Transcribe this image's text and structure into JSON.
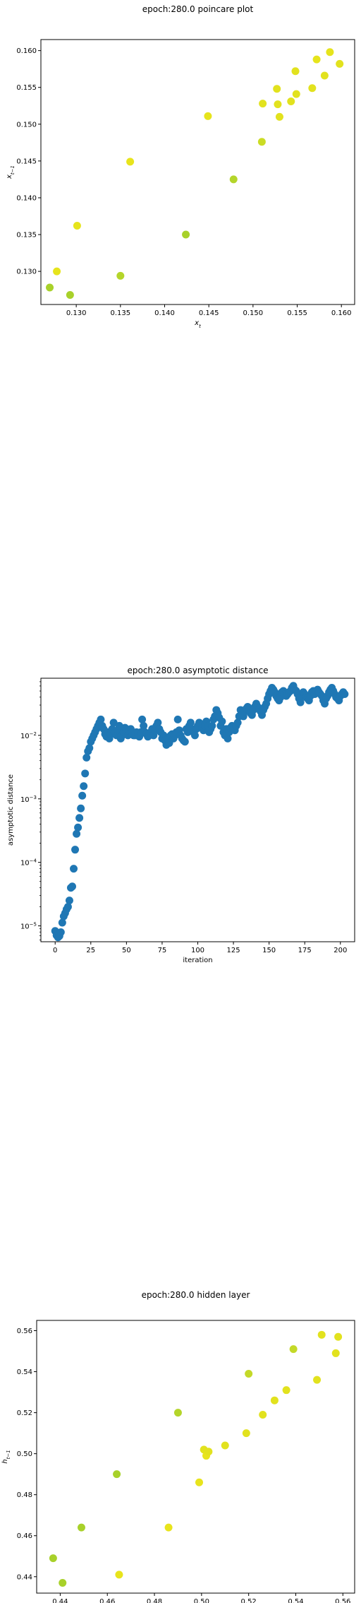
{
  "charts": [
    {
      "title": "epoch:280.0 poincare plot",
      "type": "scatter",
      "xlabel": "x",
      "xlabel_sub": "t",
      "ylabel": "x",
      "ylabel_sub": "t−1",
      "xlim": [
        0.126,
        0.1615
      ],
      "ylim": [
        0.1255,
        0.1615
      ],
      "xticks": [
        "0.130",
        "0.135",
        "0.140",
        "0.145",
        "0.150",
        "0.155",
        "0.160"
      ],
      "yticks": [
        "0.130",
        "0.135",
        "0.140",
        "0.145",
        "0.150",
        "0.155",
        "0.160"
      ],
      "points": [
        [
          0.127,
          0.1278,
          "#a8d12a"
        ],
        [
          0.1278,
          0.13,
          "#e6e41c"
        ],
        [
          0.1293,
          0.1268,
          "#a8d12a"
        ],
        [
          0.1301,
          0.1362,
          "#e6e41c"
        ],
        [
          0.135,
          0.1294,
          "#b4d52a"
        ],
        [
          0.1361,
          0.1449,
          "#e8e41c"
        ],
        [
          0.1424,
          0.135,
          "#a8d12a"
        ],
        [
          0.1449,
          0.1511,
          "#e6e41c"
        ],
        [
          0.1478,
          0.1425,
          "#b4d52a"
        ],
        [
          0.151,
          0.1476,
          "#cbdc24"
        ],
        [
          0.1511,
          0.1528,
          "#e2e21e"
        ],
        [
          0.1527,
          0.1548,
          "#e2e21e"
        ],
        [
          0.1528,
          0.1527,
          "#e2e21e"
        ],
        [
          0.153,
          0.151,
          "#e2e21e"
        ],
        [
          0.1543,
          0.1531,
          "#e2e21e"
        ],
        [
          0.1548,
          0.1572,
          "#e2e21e"
        ],
        [
          0.1549,
          0.1541,
          "#e2e21e"
        ],
        [
          0.1567,
          0.1549,
          "#e2e21e"
        ],
        [
          0.1572,
          0.1588,
          "#e6e41c"
        ],
        [
          0.1581,
          0.1566,
          "#e2e21e"
        ],
        [
          0.1587,
          0.1598,
          "#e6e41c"
        ],
        [
          0.1598,
          0.1582,
          "#e2e21e"
        ]
      ]
    },
    {
      "title": "epoch:280.0 asymptotic distance",
      "type": "scatter",
      "xlabel": "iteration",
      "ylabel": "asymptotic distance",
      "xlim": [
        -10,
        210
      ],
      "ylim_log": [
        -5.25,
        -1.1
      ],
      "xticks": [
        0,
        25,
        50,
        75,
        100,
        125,
        150,
        175,
        200
      ],
      "yticks": [
        {
          "exp": -5,
          "base": "10",
          "sup": "−5"
        },
        {
          "exp": -4,
          "base": "10",
          "sup": "−4"
        },
        {
          "exp": -3,
          "base": "10",
          "sup": "−3"
        },
        {
          "exp": -2,
          "base": "10",
          "sup": "−2"
        }
      ],
      "color": "#1f77b4",
      "series_logy": [
        -5.08,
        -5.15,
        -5.18,
        -5.16,
        -5.1,
        -4.95,
        -4.85,
        -4.8,
        -4.74,
        -4.7,
        -4.6,
        -4.4,
        -4.38,
        -4.1,
        -3.8,
        -3.55,
        -3.45,
        -3.3,
        -3.15,
        -2.95,
        -2.8,
        -2.6,
        -2.35,
        -2.25,
        -2.2,
        -2.1,
        -2.05,
        -2.0,
        -1.95,
        -1.9,
        -1.85,
        -1.8,
        -1.75,
        -1.85,
        -1.9,
        -1.98,
        -2.02,
        -1.95,
        -2.05,
        -1.98,
        -1.9,
        -1.8,
        -1.95,
        -2.0,
        -1.92,
        -1.85,
        -2.05,
        -2.0,
        -1.95,
        -1.88,
        -1.92,
        -2.0,
        -1.93,
        -1.9,
        -1.95,
        -2.0,
        -2.0,
        -1.95,
        -1.98,
        -2.02,
        -1.95,
        -1.75,
        -1.85,
        -1.95,
        -1.98,
        -2.02,
        -2.0,
        -1.95,
        -1.9,
        -2.0,
        -1.92,
        -1.85,
        -1.8,
        -1.9,
        -1.95,
        -2.05,
        -2.0,
        -2.08,
        -2.15,
        -2.05,
        -2.12,
        -2.0,
        -1.98,
        -2.05,
        -2.0,
        -1.95,
        -1.75,
        -1.92,
        -2.0,
        -2.05,
        -2.08,
        -2.1,
        -1.9,
        -1.95,
        -1.85,
        -1.8,
        -1.9,
        -1.95,
        -2.0,
        -1.9,
        -1.85,
        -1.8,
        -1.82,
        -1.88,
        -1.92,
        -1.85,
        -1.78,
        -1.85,
        -1.95,
        -1.9,
        -1.85,
        -1.75,
        -1.7,
        -1.6,
        -1.65,
        -1.72,
        -1.85,
        -1.78,
        -1.95,
        -2.0,
        -1.9,
        -2.05,
        -1.95,
        -1.88,
        -1.85,
        -1.9,
        -1.92,
        -1.85,
        -1.8,
        -1.7,
        -1.6,
        -1.65,
        -1.7,
        -1.62,
        -1.58,
        -1.55,
        -1.6,
        -1.65,
        -1.68,
        -1.6,
        -1.55,
        -1.5,
        -1.55,
        -1.58,
        -1.62,
        -1.68,
        -1.6,
        -1.55,
        -1.5,
        -1.42,
        -1.35,
        -1.3,
        -1.25,
        -1.28,
        -1.32,
        -1.38,
        -1.42,
        -1.45,
        -1.4,
        -1.32,
        -1.3,
        -1.35,
        -1.38,
        -1.35,
        -1.32,
        -1.3,
        -1.25,
        -1.22,
        -1.28,
        -1.3,
        -1.35,
        -1.42,
        -1.48,
        -1.38,
        -1.32,
        -1.35,
        -1.4,
        -1.42,
        -1.45,
        -1.38,
        -1.32,
        -1.3,
        -1.35,
        -1.3,
        -1.28,
        -1.32,
        -1.35,
        -1.38,
        -1.45,
        -1.5,
        -1.42,
        -1.38,
        -1.32,
        -1.28,
        -1.25,
        -1.3,
        -1.35,
        -1.4,
        -1.42,
        -1.45,
        -1.38,
        -1.35,
        -1.32,
        -1.35
      ]
    },
    {
      "title": "epoch:280.0 hidden layer",
      "type": "scatter",
      "xlabel": "h",
      "xlabel_sub": "t",
      "ylabel": "h",
      "ylabel_sub": "t−1",
      "xlim": [
        0.43,
        0.565
      ],
      "ylim": [
        0.432,
        0.565
      ],
      "xticks": [
        "0.44",
        "0.46",
        "0.48",
        "0.50",
        "0.52",
        "0.54",
        "0.56"
      ],
      "yticks": [
        "0.44",
        "0.46",
        "0.48",
        "0.50",
        "0.52",
        "0.54",
        "0.56"
      ],
      "points": [
        [
          0.437,
          0.449,
          "#a8d12a"
        ],
        [
          0.441,
          0.437,
          "#a8d12a"
        ],
        [
          0.449,
          0.464,
          "#a8d12a"
        ],
        [
          0.464,
          0.49,
          "#a8d12a"
        ],
        [
          0.465,
          0.441,
          "#e8e41c"
        ],
        [
          0.486,
          0.464,
          "#e8e41c"
        ],
        [
          0.49,
          0.52,
          "#b4d52a"
        ],
        [
          0.499,
          0.486,
          "#e8e41c"
        ],
        [
          0.501,
          0.502,
          "#e2e21e"
        ],
        [
          0.502,
          0.499,
          "#e8e41c"
        ],
        [
          0.503,
          0.501,
          "#e2e21e"
        ],
        [
          0.51,
          0.504,
          "#e2e21e"
        ],
        [
          0.519,
          0.51,
          "#e2e21e"
        ],
        [
          0.52,
          0.539,
          "#c4d928"
        ],
        [
          0.526,
          0.519,
          "#e2e21e"
        ],
        [
          0.531,
          0.526,
          "#e2e21e"
        ],
        [
          0.536,
          0.531,
          "#e2e21e"
        ],
        [
          0.539,
          0.551,
          "#c4d928"
        ],
        [
          0.549,
          0.536,
          "#e2e21e"
        ],
        [
          0.551,
          0.558,
          "#e2e21e"
        ],
        [
          0.557,
          0.549,
          "#e2e21e"
        ],
        [
          0.558,
          0.557,
          "#e2e21e"
        ]
      ]
    }
  ]
}
